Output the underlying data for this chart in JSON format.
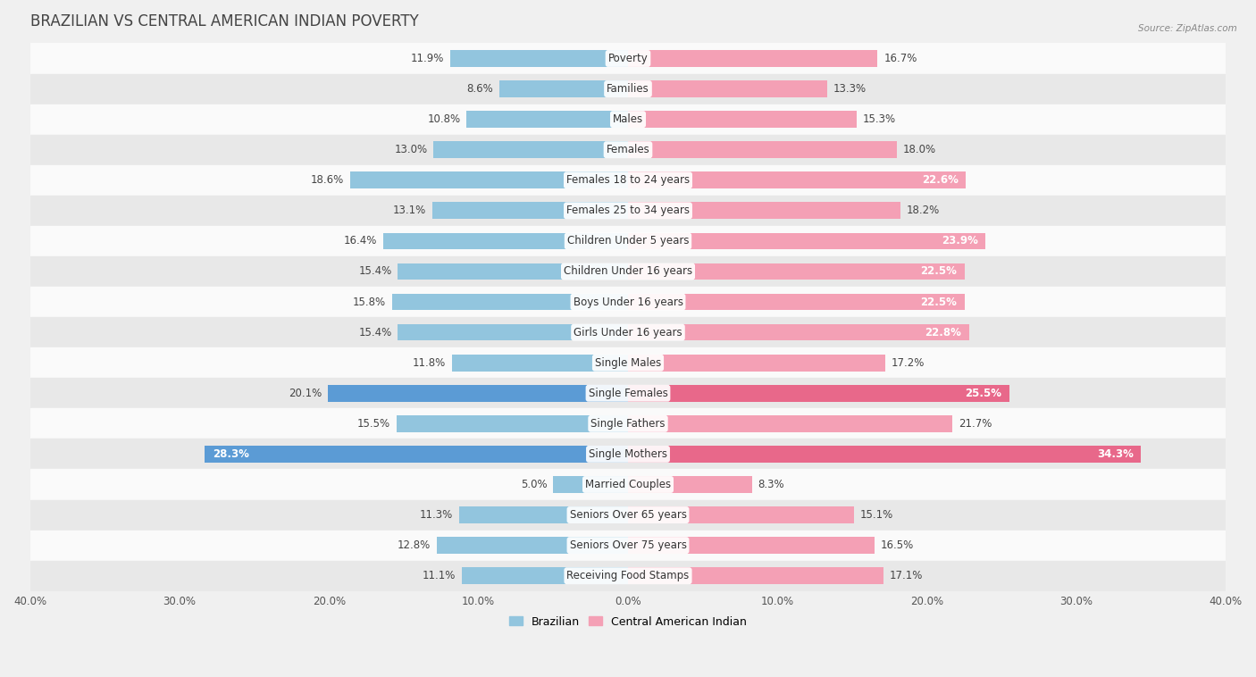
{
  "title": "BRAZILIAN VS CENTRAL AMERICAN INDIAN POVERTY",
  "source": "Source: ZipAtlas.com",
  "categories": [
    "Poverty",
    "Families",
    "Males",
    "Females",
    "Females 18 to 24 years",
    "Females 25 to 34 years",
    "Children Under 5 years",
    "Children Under 16 years",
    "Boys Under 16 years",
    "Girls Under 16 years",
    "Single Males",
    "Single Females",
    "Single Fathers",
    "Single Mothers",
    "Married Couples",
    "Seniors Over 65 years",
    "Seniors Over 75 years",
    "Receiving Food Stamps"
  ],
  "brazilian": [
    11.9,
    8.6,
    10.8,
    13.0,
    18.6,
    13.1,
    16.4,
    15.4,
    15.8,
    15.4,
    11.8,
    20.1,
    15.5,
    28.3,
    5.0,
    11.3,
    12.8,
    11.1
  ],
  "central_american": [
    16.7,
    13.3,
    15.3,
    18.0,
    22.6,
    18.2,
    23.9,
    22.5,
    22.5,
    22.8,
    17.2,
    25.5,
    21.7,
    34.3,
    8.3,
    15.1,
    16.5,
    17.1
  ],
  "xlim": 40.0,
  "bar_height": 0.55,
  "color_brazilian": "#92c5de",
  "color_central_american": "#f4a0b5",
  "color_highlighted_braz": "#5b9bd5",
  "color_highlighted_ca": "#e8688a",
  "highlighted_rows": [
    "Single Females",
    "Single Mothers"
  ],
  "background_color": "#f0f0f0",
  "row_color_light": "#fafafa",
  "row_color_dark": "#e8e8e8",
  "title_fontsize": 12,
  "label_fontsize": 8.5,
  "tick_fontsize": 8.5,
  "legend_fontsize": 9,
  "value_label_threshold": 22.0
}
